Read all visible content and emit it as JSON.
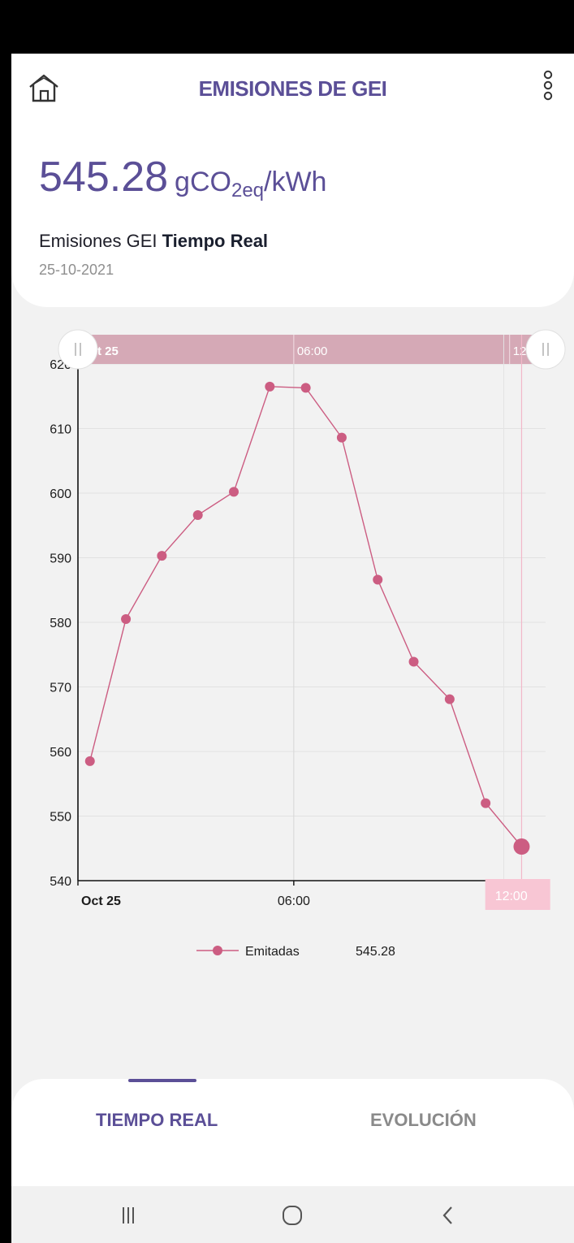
{
  "header": {
    "title": "EMISIONES DE GEI",
    "home_icon": "home-icon",
    "menu_icon": "more-vertical-icon"
  },
  "reading": {
    "value": "545.28",
    "unit_prefix": "gCO",
    "unit_sub": "2eq",
    "unit_suffix": "/kWh",
    "label_prefix": "Emisiones GEI",
    "label_bold": "Tiempo Real",
    "date": "25-10-2021"
  },
  "chart_data": {
    "type": "line",
    "series": [
      {
        "name": "Emitadas",
        "color": "#cc5d82",
        "x": [
          "00:20",
          "01:20",
          "02:20",
          "03:20",
          "04:20",
          "05:20",
          "06:20",
          "07:20",
          "08:20",
          "09:20",
          "10:20",
          "11:20",
          "12:20"
        ],
        "y": [
          558.5,
          580.5,
          590.3,
          596.6,
          600.2,
          616.5,
          616.3,
          608.6,
          586.6,
          573.9,
          568.1,
          552,
          545.28
        ]
      }
    ],
    "xticks": [
      "Oct 25",
      "06:00",
      "12:00"
    ],
    "yticks": [
      540,
      550,
      560,
      570,
      580,
      590,
      600,
      610,
      620
    ],
    "ylim": [
      540,
      620
    ],
    "xlim": [
      "00:00",
      "13:00"
    ],
    "grid": true,
    "range_selector": {
      "labels": [
        "Oct 25",
        "06:00",
        "12:00"
      ],
      "start": "00:00",
      "end": "13:00"
    },
    "crosshair": {
      "x": "12:20",
      "label": "12:00"
    },
    "legend": {
      "name": "Emitadas",
      "value": "545.28",
      "position": "bottom-center"
    }
  },
  "tabs": {
    "real_time": "TIEMPO REAL",
    "evolution": "EVOLUCIÓN",
    "active": "TIEMPO REAL"
  },
  "system_nav": {
    "recents_icon": "recents-icon",
    "home_icon": "circle-home-icon",
    "back_icon": "back-chevron-icon"
  },
  "colors": {
    "brand_purple": "#5b4f97",
    "series_pink": "#cc5d82",
    "selector_band": "#d5a9b6",
    "crosshair_label_bg": "#f8c6d4"
  }
}
